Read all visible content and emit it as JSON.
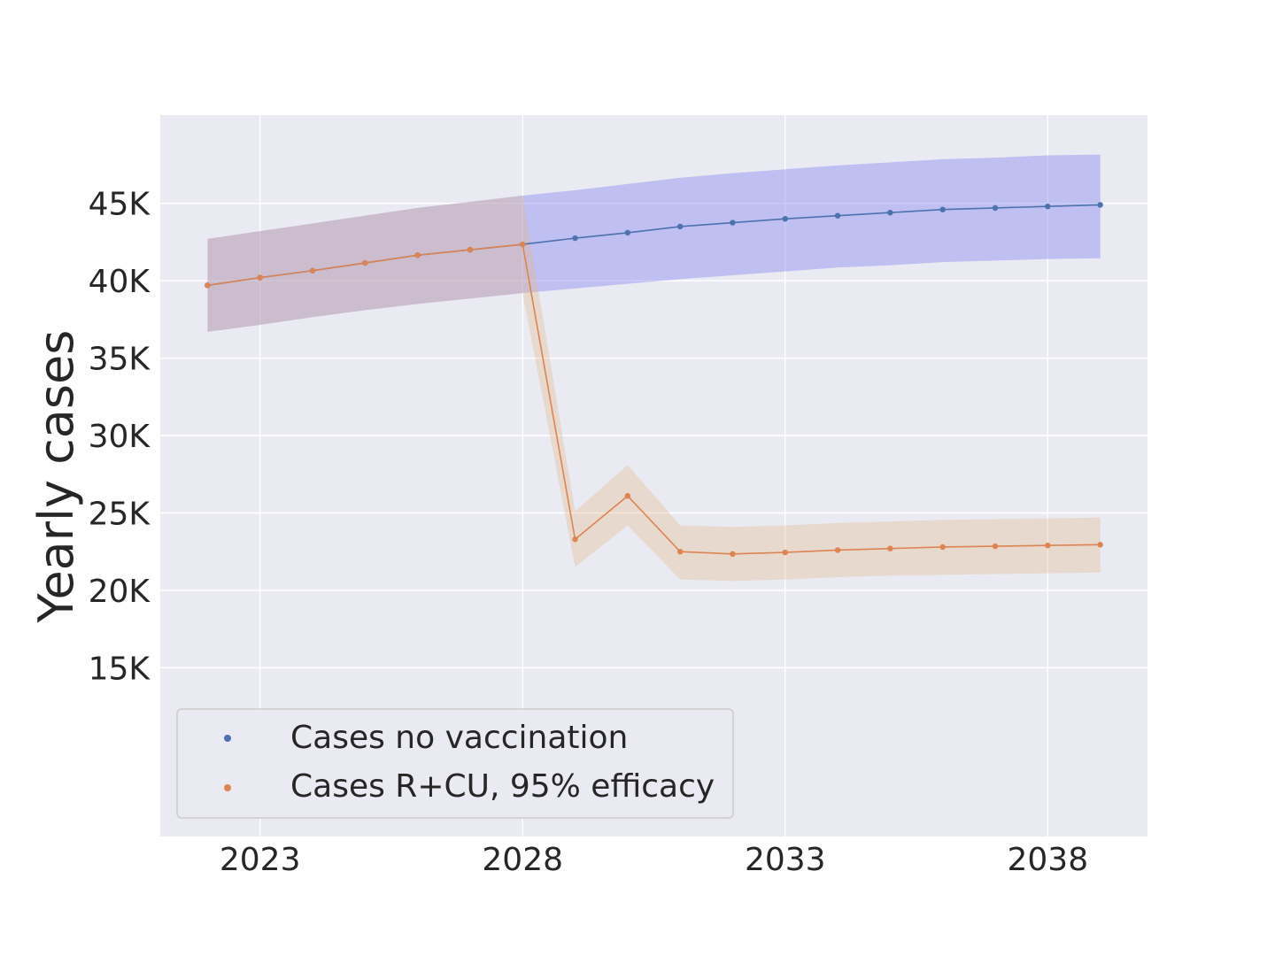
{
  "chart_data": {
    "type": "line",
    "title": "",
    "xlabel": "",
    "ylabel": "Yearly cases",
    "x": [
      2022,
      2023,
      2024,
      2025,
      2026,
      2027,
      2028,
      2029,
      2030,
      2031,
      2032,
      2033,
      2034,
      2035,
      2036,
      2037,
      2038,
      2039
    ],
    "xticks": [
      2023,
      2028,
      2033,
      2038
    ],
    "xtick_labels": [
      "2023",
      "2028",
      "2033",
      "2038"
    ],
    "xlim": [
      2021.1,
      2039.9
    ],
    "yticks": [
      15000,
      20000,
      25000,
      30000,
      35000,
      40000,
      45000
    ],
    "ytick_labels": [
      "15K",
      "20K",
      "25K",
      "30K",
      "35K",
      "40K",
      "45K"
    ],
    "ylim": [
      4100,
      50700
    ],
    "grid": true,
    "legend_position": "lower-left",
    "series": [
      {
        "name": "Cases no vaccination",
        "color": "#4c72b0",
        "band_color": "#8c8cf0",
        "values": [
          39700,
          40200,
          40650,
          41150,
          41650,
          42000,
          42350,
          42750,
          43100,
          43500,
          43750,
          44000,
          44200,
          44400,
          44600,
          44700,
          44800,
          44900
        ],
        "lower": [
          36700,
          37150,
          37650,
          38100,
          38500,
          38850,
          39200,
          39500,
          39800,
          40100,
          40350,
          40600,
          40850,
          41000,
          41200,
          41300,
          41400,
          41450
        ],
        "upper": [
          42700,
          43200,
          43700,
          44200,
          44700,
          45100,
          45500,
          45850,
          46250,
          46650,
          46950,
          47200,
          47450,
          47650,
          47850,
          47950,
          48100,
          48150
        ]
      },
      {
        "name": "Cases R+CU, 95% efficacy",
        "color": "#dd8452",
        "band_color": "#e6b98c",
        "values": [
          39700,
          40200,
          40650,
          41150,
          41650,
          42000,
          42350,
          23300,
          26100,
          22500,
          22350,
          22450,
          22600,
          22700,
          22800,
          22850,
          22900,
          22950
        ],
        "lower": [
          36700,
          37150,
          37650,
          38100,
          38500,
          38850,
          39200,
          21500,
          24200,
          20700,
          20600,
          20700,
          20850,
          20950,
          21000,
          21050,
          21100,
          21150
        ],
        "upper": [
          42700,
          43200,
          43700,
          44200,
          44700,
          45100,
          45500,
          25100,
          28100,
          24200,
          24100,
          24200,
          24350,
          24450,
          24550,
          24600,
          24650,
          24700
        ]
      }
    ]
  }
}
